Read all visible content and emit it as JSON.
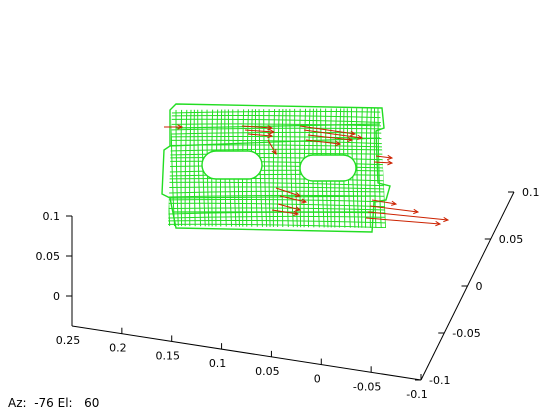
{
  "chart_data": {
    "type": "3d-mesh",
    "title": "",
    "axes": {
      "x": {
        "label": "",
        "range": [
          -0.1,
          0.25
        ],
        "ticks": [
          "0.25",
          "0.2",
          "0.15",
          "0.1",
          "0.05",
          "0",
          "-0.05",
          "-0.1"
        ]
      },
      "y": {
        "label": "",
        "range": [
          -0.1,
          0.1
        ],
        "ticks": [
          "-0.1",
          "-0.05",
          "0",
          "0.05",
          "0.1"
        ]
      },
      "z": {
        "label": "",
        "range": [
          0,
          0.1
        ],
        "ticks": [
          "0",
          "0.05",
          "0.1"
        ]
      }
    },
    "grid": false,
    "legend": "none",
    "series": [
      {
        "kind": "wireframe-surface",
        "color": "#22dd22",
        "holes": 2
      },
      {
        "kind": "vector-arrows",
        "color": "#cc2200",
        "count": 18
      }
    ]
  },
  "view": {
    "azimuth_label": "Az:",
    "azimuth": "-76",
    "elevation_label": "El:",
    "elevation": "60"
  },
  "colors": {
    "mesh": "#22dd22",
    "arrows": "#cc2200",
    "axes": "#000000"
  }
}
